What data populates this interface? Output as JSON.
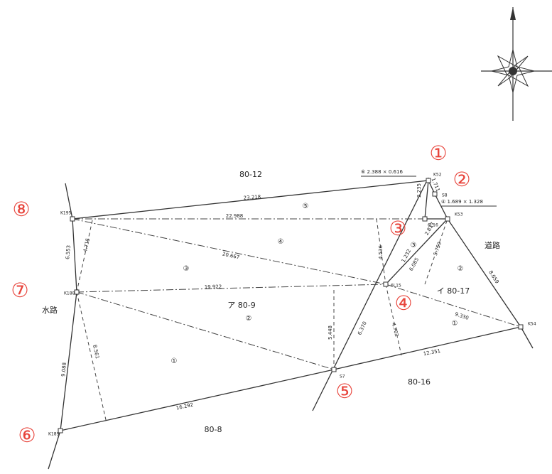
{
  "points": [
    "K52",
    "S8",
    "K53",
    "K195",
    "K188",
    "K189",
    "S7",
    "K54",
    "6L16",
    "6L15"
  ],
  "distances": [
    "23.218",
    "22.988",
    "20.667",
    "19.922",
    "9.330",
    "12.351",
    "16.292",
    "9.088",
    "6.553",
    "4.715",
    "8.561",
    "5.448",
    "6.370",
    "4.536",
    "4.702",
    "8.659",
    "5.759",
    "2.235",
    "1.232",
    "6.085",
    "1.711",
    "2.817"
  ],
  "parcels": [
    "80-12",
    "80-16",
    "80-8",
    "ア 80-9",
    "イ 80-17",
    "道路",
    "水路"
  ],
  "markers": [
    "①",
    "②",
    "③",
    "④",
    "⑤",
    "⑥",
    "⑦",
    "⑧"
  ],
  "sub_parcels": [
    "⑤",
    "④",
    "③",
    "②",
    "①",
    "②",
    "①",
    "③"
  ],
  "notes": [
    "⑥ 2.388 × 0.616",
    "④ 1.689 × 1.328"
  ]
}
